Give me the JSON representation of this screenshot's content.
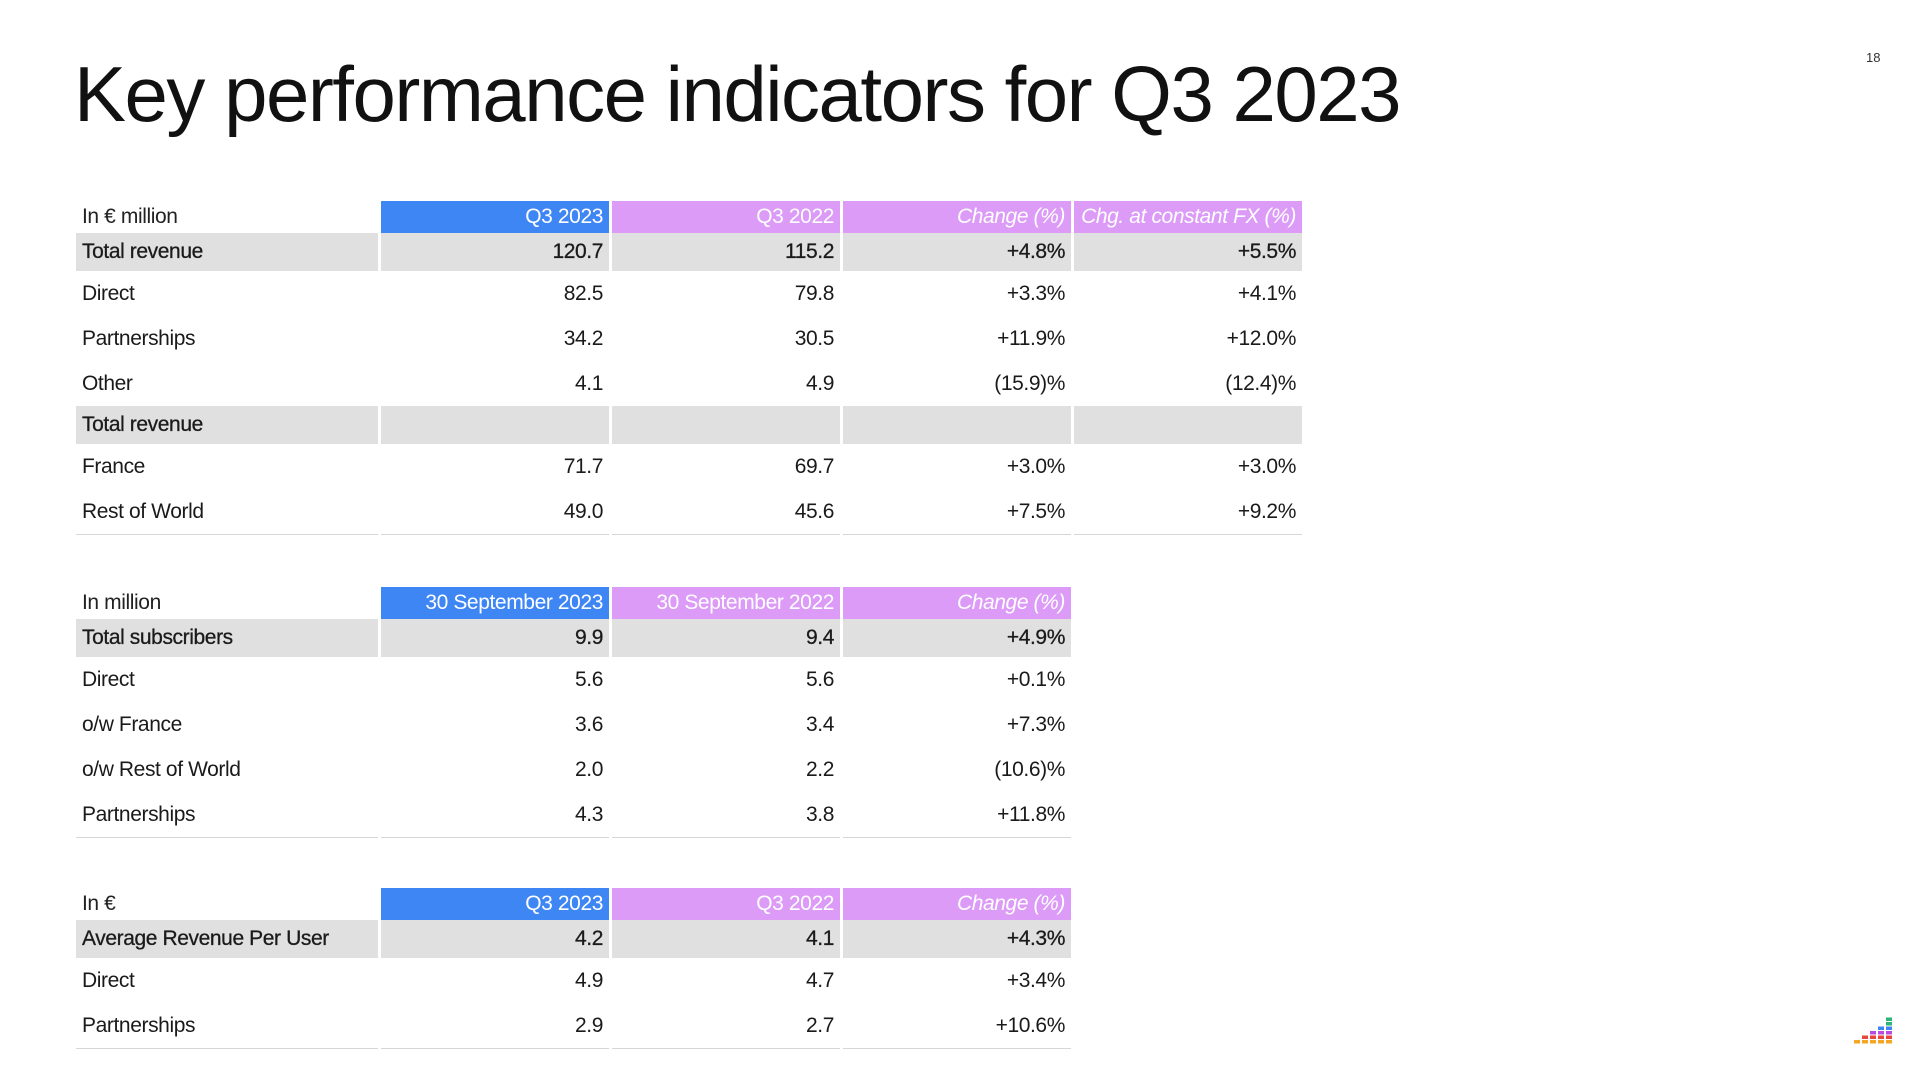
{
  "page": {
    "title": "Key performance indicators for Q3 2023",
    "page_number": "18"
  },
  "tables": {
    "revenue": {
      "headers": [
        "In € million",
        "Q3 2023",
        "Q3 2022",
        "Change  (%)",
        "Chg. at constant FX (%)"
      ],
      "rows": [
        [
          "Total revenue",
          "120.7",
          "115.2",
          "+4.8%",
          "+5.5%"
        ],
        [
          "Direct",
          "82.5",
          "79.8",
          "+3.3%",
          "+4.1%"
        ],
        [
          "Partnerships",
          "34.2",
          "30.5",
          "+11.9%",
          "+12.0%"
        ],
        [
          "Other",
          "4.1",
          "4.9",
          "(15.9)%",
          "(12.4)%"
        ],
        [
          "Total revenue",
          "",
          "",
          "",
          ""
        ],
        [
          "France",
          "71.7",
          "69.7",
          "+3.0%",
          "+3.0%"
        ],
        [
          "Rest of World",
          "49.0",
          "45.6",
          "+7.5%",
          "+9.2%"
        ]
      ]
    },
    "subscribers": {
      "headers": [
        "In million",
        "30 September 2023",
        "30 September 2022",
        "Change (%)"
      ],
      "rows": [
        [
          "Total subscribers",
          "9.9",
          "9.4",
          "+4.9%"
        ],
        [
          "Direct",
          "5.6",
          "5.6",
          "+0.1%"
        ],
        [
          "o/w France",
          "3.6",
          "3.4",
          "+7.3%"
        ],
        [
          "o/w Rest of World",
          "2.0",
          "2.2",
          "(10.6)%"
        ],
        [
          "Partnerships",
          "4.3",
          "3.8",
          "+11.8%"
        ]
      ]
    },
    "arpu": {
      "headers": [
        "In €",
        "Q3 2023",
        "Q3 2022",
        "Change (%)"
      ],
      "rows": [
        [
          "Average Revenue Per User",
          "4.2",
          "4.1",
          "+4.3%"
        ],
        [
          "Direct",
          "4.9",
          "4.7",
          "+3.4%"
        ],
        [
          "Partnerships",
          "2.9",
          "2.7",
          "+10.6%"
        ]
      ]
    }
  },
  "colors": {
    "current_header": "#3f86f5",
    "prior_header": "#db9bf7",
    "highlight_row": "#e0e0e0",
    "logo_bars": [
      "#f5a623",
      "#e8463a",
      "#b84ce0",
      "#3f86f5",
      "#2bb673"
    ]
  },
  "logo": {
    "icon": "equalizer-bars-logo"
  }
}
